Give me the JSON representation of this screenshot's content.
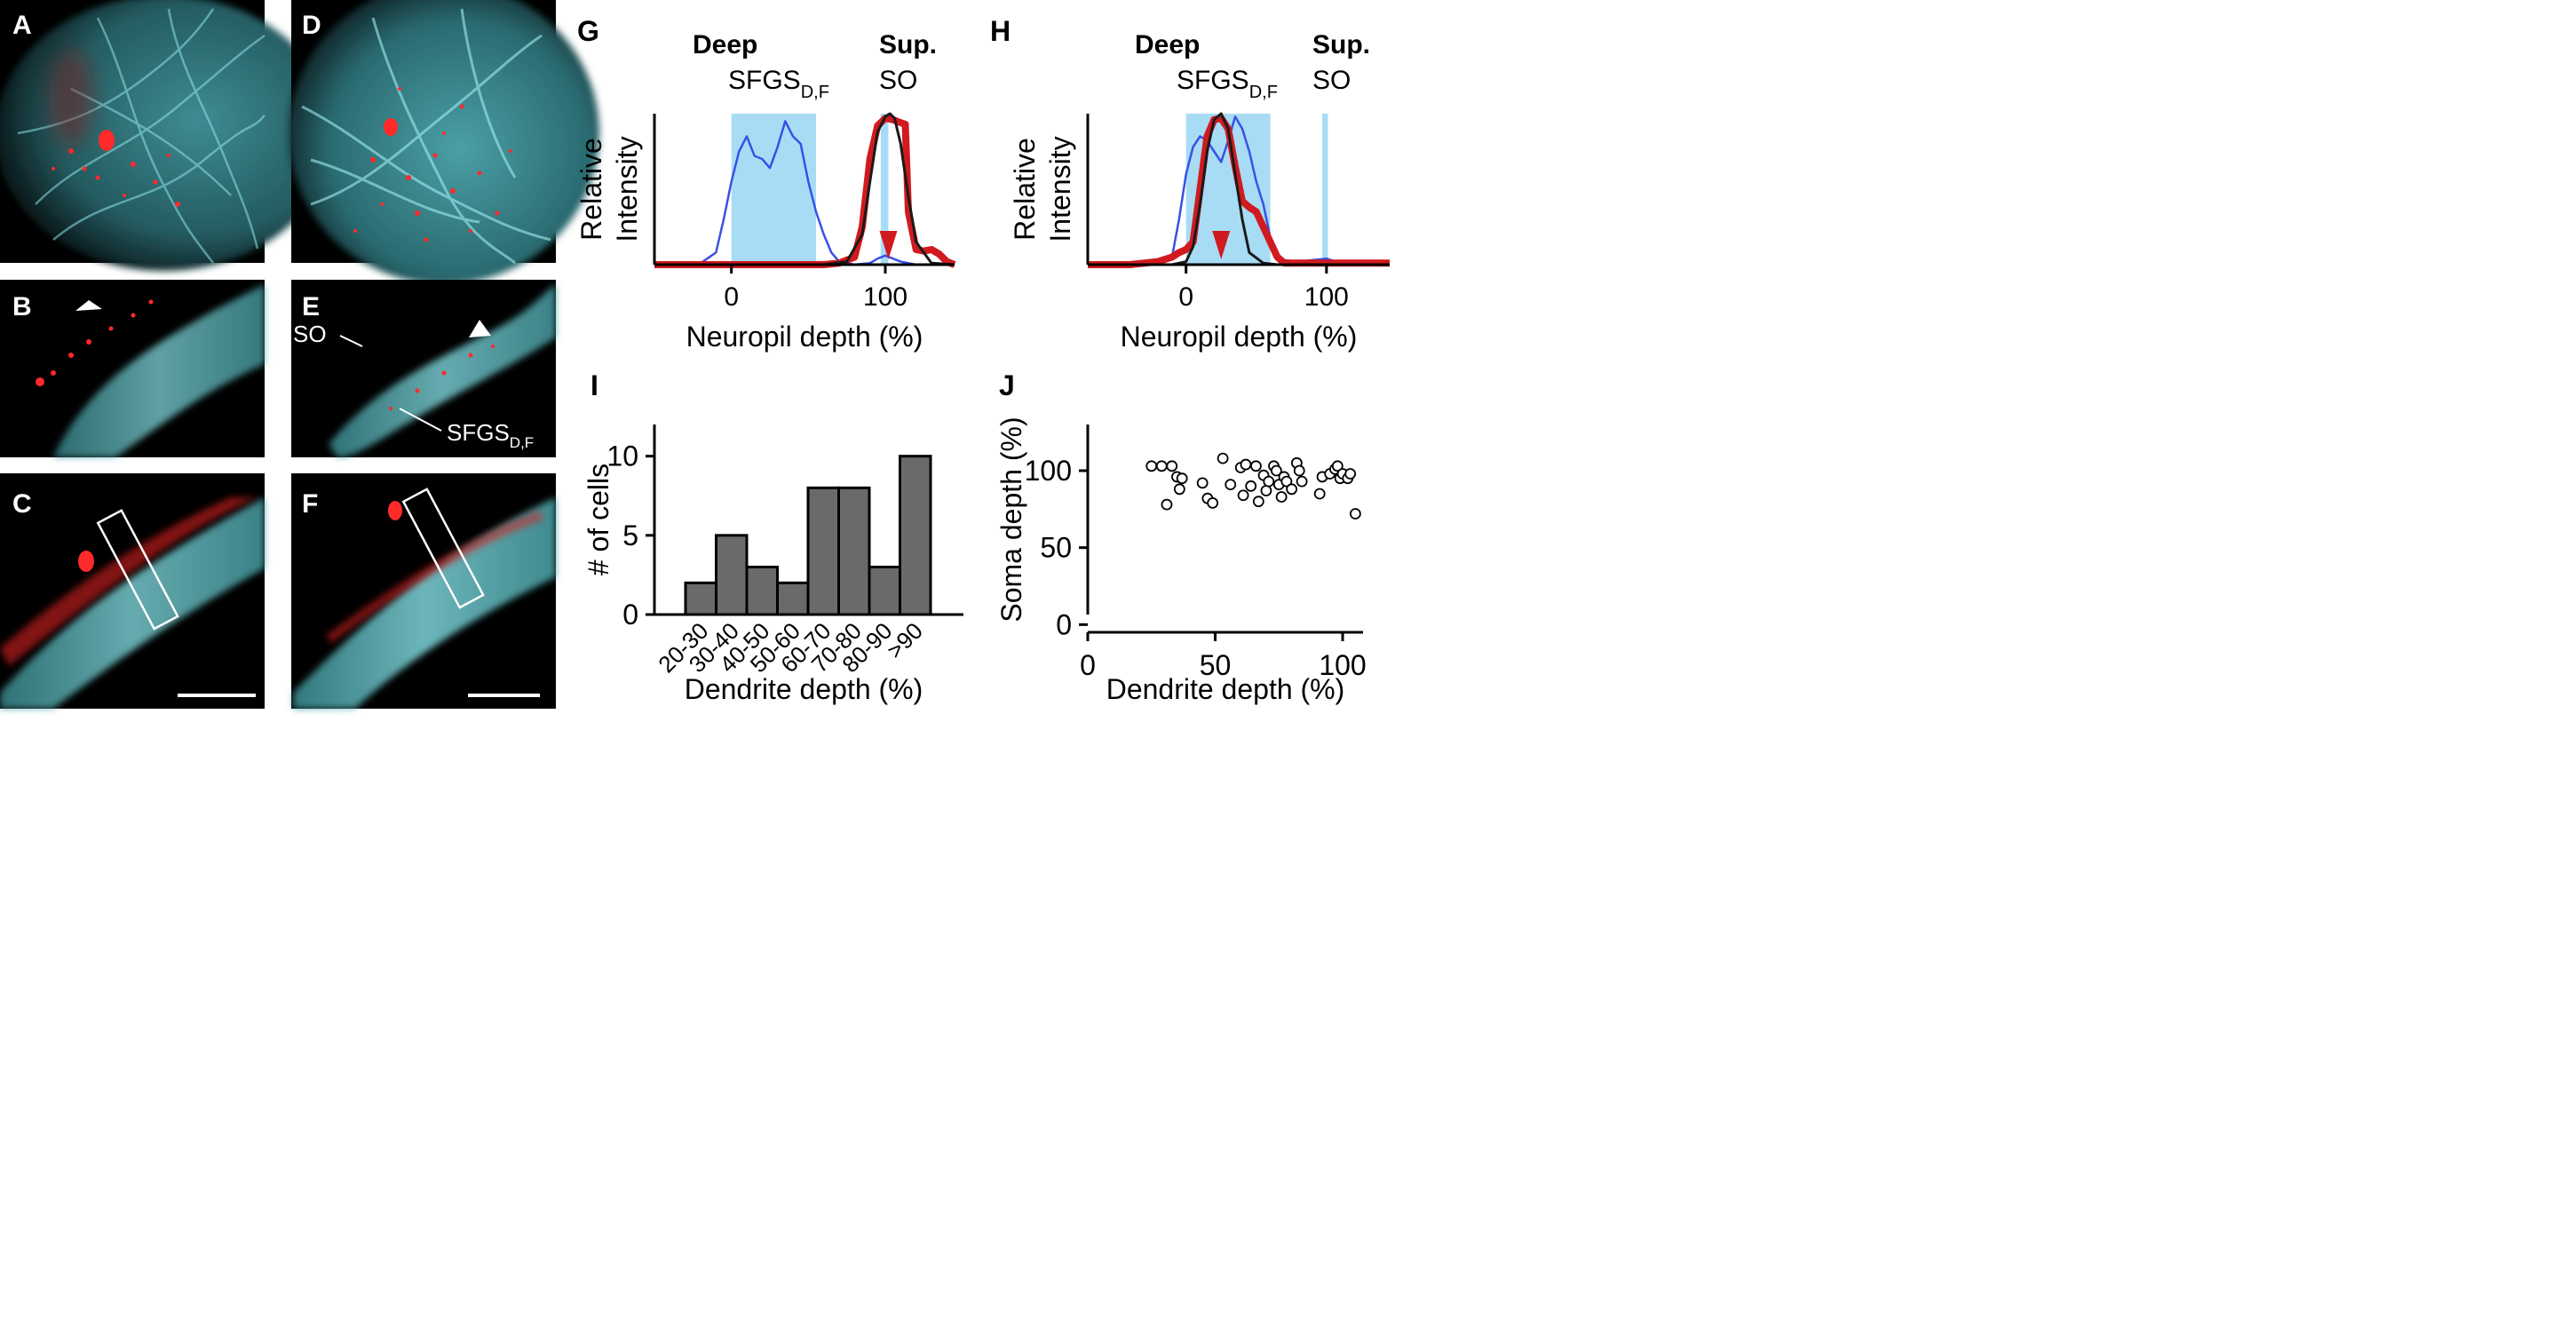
{
  "panels": {
    "A": {
      "letter": "A"
    },
    "B": {
      "letter": "B"
    },
    "C": {
      "letter": "C"
    },
    "D": {
      "letter": "D"
    },
    "E": {
      "letter": "E",
      "label_so": "SO",
      "label_sfgs": "SFGS",
      "label_sfgs_sub": "D,F"
    },
    "F": {
      "letter": "F"
    },
    "G": {
      "letter": "G",
      "deep": "Deep",
      "sup": "Sup.",
      "sfgs": "SFGS",
      "sfgs_sub": "D,F",
      "so": "SO"
    },
    "H": {
      "letter": "H",
      "deep": "Deep",
      "sup": "Sup.",
      "sfgs": "SFGS",
      "sfgs_sub": "D,F",
      "so": "SO"
    },
    "I": {
      "letter": "I"
    },
    "J": {
      "letter": "J"
    }
  },
  "colors": {
    "cyan": "#6fd3d8",
    "red": "#e8202a",
    "profile_blue": "#3a50e6",
    "profile_red": "#d01a1f",
    "layer_fill": "#a8dcf5",
    "bar_fill": "#6a6a6a"
  },
  "chart_data": [
    {
      "panel": "G",
      "type": "line",
      "xlabel": "Neuropil depth (%)",
      "ylabel_lines": [
        "Relative",
        "Intensity"
      ],
      "xlim": [
        -50,
        145
      ],
      "xticks": [
        0,
        100
      ],
      "shaded_bands": [
        {
          "x0": 0,
          "x1": 55
        },
        {
          "x0": 97,
          "x1": 102
        }
      ],
      "arrow_x": 102,
      "series": [
        {
          "role": "blue",
          "x": [
            -50,
            -20,
            -10,
            -5,
            0,
            5,
            10,
            15,
            20,
            25,
            30,
            35,
            40,
            45,
            50,
            55,
            60,
            65,
            70,
            80,
            90,
            95,
            100,
            110,
            120,
            130,
            145
          ],
          "y": [
            0,
            0.01,
            0.08,
            0.3,
            0.55,
            0.75,
            0.85,
            0.72,
            0.7,
            0.64,
            0.78,
            0.95,
            0.85,
            0.8,
            0.55,
            0.35,
            0.2,
            0.08,
            0.02,
            0,
            0.01,
            0.04,
            0.06,
            0.02,
            0,
            0,
            0
          ]
        },
        {
          "role": "red",
          "x": [
            -50,
            60,
            70,
            80,
            85,
            90,
            95,
            100,
            105,
            110,
            113,
            115,
            120,
            125,
            130,
            135,
            140,
            145
          ],
          "y": [
            0,
            0,
            0.01,
            0.05,
            0.25,
            0.7,
            0.92,
            0.97,
            0.96,
            0.94,
            0.93,
            0.35,
            0.1,
            0.09,
            0.1,
            0.07,
            0.02,
            0
          ]
        },
        {
          "role": "fit",
          "x": [
            60,
            75,
            85,
            90,
            95,
            100,
            103,
            106,
            110,
            115,
            120,
            130,
            145
          ],
          "y": [
            0,
            0.02,
            0.2,
            0.55,
            0.88,
            0.98,
            1.0,
            0.97,
            0.8,
            0.45,
            0.15,
            0.01,
            0
          ]
        }
      ]
    },
    {
      "panel": "H",
      "type": "line",
      "xlabel": "Neuropil depth (%)",
      "ylabel_lines": [
        "Relative",
        "Intensity"
      ],
      "xlim": [
        -70,
        145
      ],
      "xticks": [
        0,
        100
      ],
      "shaded_bands": [
        {
          "x0": 0,
          "x1": 60
        },
        {
          "x0": 97,
          "x1": 101
        }
      ],
      "arrow_x": 25,
      "series": [
        {
          "role": "blue",
          "x": [
            -70,
            -20,
            -10,
            -5,
            0,
            5,
            10,
            15,
            20,
            25,
            30,
            35,
            40,
            45,
            50,
            55,
            60,
            65,
            70,
            80,
            90,
            100,
            110,
            145
          ],
          "y": [
            0,
            0,
            0.05,
            0.3,
            0.6,
            0.78,
            0.85,
            0.82,
            0.75,
            0.68,
            0.82,
            0.98,
            0.9,
            0.75,
            0.55,
            0.4,
            0.18,
            0.07,
            0.03,
            0.02,
            0.03,
            0.04,
            0.01,
            0
          ]
        },
        {
          "role": "red",
          "x": [
            -70,
            -40,
            -20,
            -10,
            -5,
            0,
            5,
            10,
            15,
            20,
            25,
            30,
            35,
            40,
            45,
            50,
            55,
            60,
            65,
            70,
            80,
            100,
            145
          ],
          "y": [
            0,
            0,
            0.02,
            0.05,
            0.08,
            0.1,
            0.15,
            0.5,
            0.85,
            0.96,
            0.97,
            0.9,
            0.65,
            0.42,
            0.38,
            0.35,
            0.25,
            0.15,
            0.05,
            0.01,
            0.01,
            0.01,
            0.01
          ]
        },
        {
          "role": "fit",
          "x": [
            -10,
            0,
            5,
            10,
            15,
            20,
            25,
            30,
            35,
            40,
            45,
            55,
            65
          ],
          "y": [
            0,
            0.02,
            0.12,
            0.4,
            0.75,
            0.96,
            1.0,
            0.9,
            0.6,
            0.3,
            0.08,
            0.01,
            0
          ]
        }
      ]
    },
    {
      "panel": "I",
      "type": "bar",
      "xlabel": "Dendrite depth (%)",
      "ylabel": "# of cells",
      "ylim": [
        0,
        12
      ],
      "yticks": [
        0,
        5,
        10
      ],
      "categories": [
        "20-30",
        "30-40",
        "40-50",
        "50-60",
        "60-70",
        "70-80",
        "80-90",
        ">90"
      ],
      "values": [
        2,
        5,
        3,
        2,
        8,
        8,
        3,
        10
      ]
    },
    {
      "panel": "J",
      "type": "scatter",
      "xlabel": "Dendrite depth (%)",
      "ylabel": "Soma depth (%)",
      "xlim": [
        0,
        108
      ],
      "ylim": [
        -5,
        130
      ],
      "xticks": [
        0,
        50,
        100
      ],
      "yticks": [
        0,
        50,
        100
      ],
      "points": [
        [
          25,
          103
        ],
        [
          29,
          103
        ],
        [
          31,
          78
        ],
        [
          33,
          103
        ],
        [
          35,
          96
        ],
        [
          36,
          88
        ],
        [
          37,
          95
        ],
        [
          45,
          92
        ],
        [
          47,
          82
        ],
        [
          49,
          79
        ],
        [
          53,
          108
        ],
        [
          56,
          91
        ],
        [
          60,
          102
        ],
        [
          61,
          84
        ],
        [
          62,
          104
        ],
        [
          64,
          90
        ],
        [
          66,
          103
        ],
        [
          67,
          80
        ],
        [
          69,
          97
        ],
        [
          70,
          87
        ],
        [
          71,
          93
        ],
        [
          73,
          103
        ],
        [
          74,
          100
        ],
        [
          75,
          91
        ],
        [
          76,
          83
        ],
        [
          77,
          96
        ],
        [
          78,
          93
        ],
        [
          80,
          88
        ],
        [
          82,
          105
        ],
        [
          83,
          100
        ],
        [
          84,
          93
        ],
        [
          91,
          85
        ],
        [
          92,
          96
        ],
        [
          95,
          98
        ],
        [
          97,
          101
        ],
        [
          98,
          103
        ],
        [
          99,
          95
        ],
        [
          100,
          98
        ],
        [
          102,
          95
        ],
        [
          103,
          98
        ],
        [
          105,
          72
        ]
      ]
    }
  ]
}
